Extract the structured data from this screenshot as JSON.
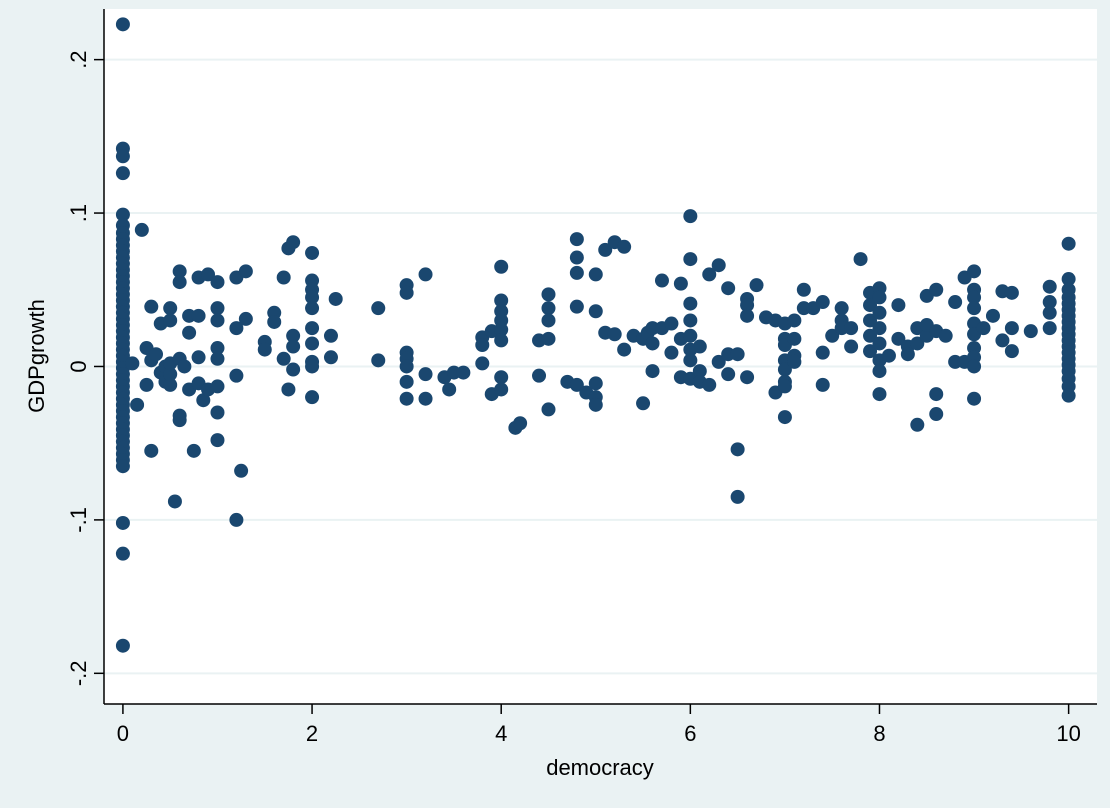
{
  "colors": {
    "outer_background": "#EAF2F3",
    "plot_background": "#FFFFFF",
    "gridline": "#EAF2F3",
    "marker": "#1A476F",
    "axis": "#000000"
  },
  "chart_data": {
    "type": "scatter",
    "xlabel": "democracy",
    "ylabel": "GDPgrowth",
    "xlim": [
      -0.2,
      10.3
    ],
    "ylim": [
      -0.22,
      0.233
    ],
    "xticks": [
      0,
      2,
      4,
      6,
      8,
      10
    ],
    "xtick_labels": [
      "0",
      "2",
      "4",
      "6",
      "8",
      "10"
    ],
    "yticks": [
      -0.2,
      -0.1,
      0,
      0.1,
      0.2
    ],
    "ytick_labels": [
      "-.2",
      "-.1",
      "0",
      ".1",
      ".2"
    ],
    "grid": "horizontal",
    "marker": "filled-circle",
    "points": [
      [
        0,
        0.223
      ],
      [
        0,
        0.142
      ],
      [
        0,
        0.137
      ],
      [
        0,
        0.126
      ],
      [
        0,
        0.099
      ],
      [
        0,
        0.092
      ],
      [
        0,
        0.087
      ],
      [
        0,
        0.083
      ],
      [
        0,
        0.079
      ],
      [
        0,
        0.075
      ],
      [
        0,
        0.071
      ],
      [
        0,
        0.067
      ],
      [
        0,
        0.063
      ],
      [
        0,
        0.059
      ],
      [
        0,
        0.055
      ],
      [
        0,
        0.051
      ],
      [
        0,
        0.047
      ],
      [
        0,
        0.043
      ],
      [
        0,
        0.039
      ],
      [
        0,
        0.035
      ],
      [
        0,
        0.031
      ],
      [
        0,
        0.027
      ],
      [
        0,
        0.023
      ],
      [
        0,
        0.019
      ],
      [
        0,
        0.015
      ],
      [
        0,
        0.011
      ],
      [
        0,
        0.007
      ],
      [
        0,
        0.003
      ],
      [
        0,
        -0.001
      ],
      [
        0,
        -0.005
      ],
      [
        0,
        -0.009
      ],
      [
        0,
        -0.013
      ],
      [
        0,
        -0.017
      ],
      [
        0,
        -0.021
      ],
      [
        0,
        -0.025
      ],
      [
        0,
        -0.029
      ],
      [
        0,
        -0.033
      ],
      [
        0,
        -0.037
      ],
      [
        0,
        -0.041
      ],
      [
        0,
        -0.045
      ],
      [
        0,
        -0.049
      ],
      [
        0,
        -0.053
      ],
      [
        0,
        -0.057
      ],
      [
        0,
        -0.061
      ],
      [
        0,
        -0.065
      ],
      [
        0,
        -0.102
      ],
      [
        0,
        -0.122
      ],
      [
        0,
        -0.182
      ],
      [
        0.1,
        0.002
      ],
      [
        0.15,
        -0.025
      ],
      [
        0.2,
        0.089
      ],
      [
        0.25,
        0.012
      ],
      [
        0.25,
        -0.012
      ],
      [
        0.3,
        0.039
      ],
      [
        0.3,
        0.004
      ],
      [
        0.3,
        -0.055
      ],
      [
        0.35,
        0.008
      ],
      [
        0.4,
        0.028
      ],
      [
        0.4,
        -0.004
      ],
      [
        0.45,
        -0.01
      ],
      [
        0.45,
        0.0
      ],
      [
        0.5,
        0.038
      ],
      [
        0.5,
        0.03
      ],
      [
        0.5,
        -0.012
      ],
      [
        0.5,
        -0.005
      ],
      [
        0.5,
        0.002
      ],
      [
        0.55,
        -0.088
      ],
      [
        0.6,
        0.062
      ],
      [
        0.6,
        0.055
      ],
      [
        0.6,
        0.005
      ],
      [
        0.6,
        -0.032
      ],
      [
        0.6,
        -0.035
      ],
      [
        0.65,
        0.0
      ],
      [
        0.7,
        0.033
      ],
      [
        0.7,
        0.022
      ],
      [
        0.7,
        -0.015
      ],
      [
        0.75,
        -0.055
      ],
      [
        0.8,
        0.058
      ],
      [
        0.8,
        0.033
      ],
      [
        0.8,
        0.006
      ],
      [
        0.8,
        -0.011
      ],
      [
        0.85,
        -0.022
      ],
      [
        0.9,
        0.06
      ],
      [
        0.9,
        -0.015
      ],
      [
        1.0,
        0.055
      ],
      [
        1.0,
        0.038
      ],
      [
        1.0,
        0.03
      ],
      [
        1.0,
        0.012
      ],
      [
        1.0,
        0.005
      ],
      [
        1.0,
        -0.013
      ],
      [
        1.0,
        -0.03
      ],
      [
        1.0,
        -0.048
      ],
      [
        1.2,
        0.058
      ],
      [
        1.2,
        0.025
      ],
      [
        1.2,
        -0.006
      ],
      [
        1.2,
        -0.1
      ],
      [
        1.25,
        -0.068
      ],
      [
        1.3,
        0.062
      ],
      [
        1.3,
        0.031
      ],
      [
        1.5,
        0.016
      ],
      [
        1.5,
        0.011
      ],
      [
        1.6,
        0.035
      ],
      [
        1.6,
        0.029
      ],
      [
        1.7,
        0.058
      ],
      [
        1.7,
        0.005
      ],
      [
        1.75,
        -0.015
      ],
      [
        1.75,
        0.077
      ],
      [
        1.8,
        0.081
      ],
      [
        1.8,
        0.02
      ],
      [
        1.8,
        0.013
      ],
      [
        1.8,
        -0.002
      ],
      [
        2.0,
        0.074
      ],
      [
        2.0,
        0.056
      ],
      [
        2.0,
        0.05
      ],
      [
        2.0,
        0.045
      ],
      [
        2.0,
        0.038
      ],
      [
        2.0,
        0.025
      ],
      [
        2.0,
        0.015
      ],
      [
        2.0,
        0.003
      ],
      [
        2.0,
        0.0
      ],
      [
        2.0,
        -0.02
      ],
      [
        2.2,
        0.02
      ],
      [
        2.2,
        0.006
      ],
      [
        2.25,
        0.044
      ],
      [
        2.7,
        0.038
      ],
      [
        2.7,
        0.004
      ],
      [
        3.0,
        0.053
      ],
      [
        3.0,
        0.048
      ],
      [
        3.0,
        0.009
      ],
      [
        3.0,
        0.005
      ],
      [
        3.0,
        0.0
      ],
      [
        3.0,
        -0.01
      ],
      [
        3.0,
        -0.021
      ],
      [
        3.2,
        0.06
      ],
      [
        3.2,
        -0.005
      ],
      [
        3.2,
        -0.021
      ],
      [
        3.4,
        -0.007
      ],
      [
        3.45,
        -0.015
      ],
      [
        3.5,
        -0.004
      ],
      [
        3.6,
        -0.004
      ],
      [
        3.8,
        0.019
      ],
      [
        3.8,
        0.014
      ],
      [
        3.8,
        0.002
      ],
      [
        3.9,
        0.023
      ],
      [
        3.9,
        -0.018
      ],
      [
        4.0,
        0.065
      ],
      [
        4.0,
        0.043
      ],
      [
        4.0,
        0.036
      ],
      [
        4.0,
        0.03
      ],
      [
        4.0,
        0.024
      ],
      [
        4.0,
        0.017
      ],
      [
        4.0,
        -0.007
      ],
      [
        4.0,
        -0.015
      ],
      [
        4.15,
        -0.04
      ],
      [
        4.2,
        -0.037
      ],
      [
        4.4,
        -0.006
      ],
      [
        4.4,
        0.017
      ],
      [
        4.5,
        0.047
      ],
      [
        4.5,
        0.038
      ],
      [
        4.5,
        0.03
      ],
      [
        4.5,
        0.018
      ],
      [
        4.5,
        -0.028
      ],
      [
        4.7,
        -0.01
      ],
      [
        4.8,
        -0.012
      ],
      [
        4.8,
        0.083
      ],
      [
        4.8,
        0.071
      ],
      [
        4.8,
        0.061
      ],
      [
        4.8,
        0.039
      ],
      [
        4.9,
        -0.017
      ],
      [
        5.0,
        0.06
      ],
      [
        5.0,
        0.036
      ],
      [
        5.0,
        -0.011
      ],
      [
        5.0,
        -0.02
      ],
      [
        5.0,
        -0.025
      ],
      [
        5.1,
        0.076
      ],
      [
        5.1,
        0.022
      ],
      [
        5.2,
        0.081
      ],
      [
        5.2,
        0.021
      ],
      [
        5.3,
        0.078
      ],
      [
        5.3,
        0.011
      ],
      [
        5.4,
        0.02
      ],
      [
        5.5,
        0.018
      ],
      [
        5.5,
        -0.024
      ],
      [
        5.55,
        0.022
      ],
      [
        5.6,
        0.025
      ],
      [
        5.6,
        0.015
      ],
      [
        5.6,
        -0.003
      ],
      [
        5.7,
        0.056
      ],
      [
        5.7,
        0.025
      ],
      [
        5.8,
        0.028
      ],
      [
        5.8,
        0.009
      ],
      [
        5.9,
        0.054
      ],
      [
        5.9,
        0.018
      ],
      [
        5.9,
        -0.007
      ],
      [
        6.0,
        0.098
      ],
      [
        6.0,
        0.07
      ],
      [
        6.0,
        0.041
      ],
      [
        6.0,
        0.03
      ],
      [
        6.0,
        0.02
      ],
      [
        6.0,
        0.011
      ],
      [
        6.0,
        0.004
      ],
      [
        6.0,
        -0.008
      ],
      [
        6.1,
        0.013
      ],
      [
        6.1,
        -0.003
      ],
      [
        6.1,
        -0.01
      ],
      [
        6.2,
        0.06
      ],
      [
        6.2,
        -0.012
      ],
      [
        6.3,
        0.066
      ],
      [
        6.3,
        0.003
      ],
      [
        6.4,
        0.051
      ],
      [
        6.4,
        0.008
      ],
      [
        6.4,
        -0.005
      ],
      [
        6.5,
        0.008
      ],
      [
        6.5,
        -0.054
      ],
      [
        6.5,
        -0.085
      ],
      [
        6.6,
        0.044
      ],
      [
        6.6,
        0.04
      ],
      [
        6.6,
        0.033
      ],
      [
        6.6,
        -0.007
      ],
      [
        6.7,
        0.053
      ],
      [
        6.8,
        0.032
      ],
      [
        6.9,
        0.03
      ],
      [
        6.9,
        -0.017
      ],
      [
        7.0,
        0.028
      ],
      [
        7.0,
        0.018
      ],
      [
        7.0,
        0.014
      ],
      [
        7.0,
        0.004
      ],
      [
        7.0,
        -0.002
      ],
      [
        7.0,
        -0.01
      ],
      [
        7.0,
        -0.013
      ],
      [
        7.0,
        -0.033
      ],
      [
        7.1,
        0.03
      ],
      [
        7.1,
        0.018
      ],
      [
        7.1,
        0.007
      ],
      [
        7.1,
        0.003
      ],
      [
        7.2,
        0.05
      ],
      [
        7.2,
        0.038
      ],
      [
        7.3,
        0.038
      ],
      [
        7.4,
        0.042
      ],
      [
        7.4,
        0.009
      ],
      [
        7.4,
        -0.012
      ],
      [
        7.5,
        0.02
      ],
      [
        7.6,
        0.038
      ],
      [
        7.6,
        0.03
      ],
      [
        7.6,
        0.025
      ],
      [
        7.7,
        0.013
      ],
      [
        7.7,
        0.025
      ],
      [
        7.8,
        0.07
      ],
      [
        7.9,
        0.048
      ],
      [
        7.9,
        0.04
      ],
      [
        7.9,
        0.03
      ],
      [
        7.9,
        0.02
      ],
      [
        7.9,
        0.01
      ],
      [
        8.0,
        0.051
      ],
      [
        8.0,
        0.045
      ],
      [
        8.0,
        0.035
      ],
      [
        8.0,
        0.025
      ],
      [
        8.0,
        0.015
      ],
      [
        8.0,
        0.004
      ],
      [
        8.0,
        -0.003
      ],
      [
        8.0,
        -0.018
      ],
      [
        8.1,
        0.007
      ],
      [
        8.2,
        0.04
      ],
      [
        8.2,
        0.018
      ],
      [
        8.3,
        0.013
      ],
      [
        8.3,
        0.008
      ],
      [
        8.4,
        0.025
      ],
      [
        8.4,
        0.015
      ],
      [
        8.4,
        -0.038
      ],
      [
        8.5,
        0.02
      ],
      [
        8.5,
        0.046
      ],
      [
        8.5,
        0.027
      ],
      [
        8.6,
        0.05
      ],
      [
        8.6,
        0.023
      ],
      [
        8.6,
        -0.018
      ],
      [
        8.6,
        -0.031
      ],
      [
        8.7,
        0.02
      ],
      [
        8.8,
        0.042
      ],
      [
        8.8,
        0.003
      ],
      [
        8.9,
        0.058
      ],
      [
        8.9,
        0.003
      ],
      [
        9.0,
        0.062
      ],
      [
        9.0,
        0.05
      ],
      [
        9.0,
        0.045
      ],
      [
        9.0,
        0.038
      ],
      [
        9.0,
        0.028
      ],
      [
        9.0,
        0.021
      ],
      [
        9.0,
        0.012
      ],
      [
        9.0,
        0.006
      ],
      [
        9.0,
        0.0
      ],
      [
        9.0,
        -0.021
      ],
      [
        9.1,
        0.025
      ],
      [
        9.2,
        0.033
      ],
      [
        9.3,
        0.049
      ],
      [
        9.3,
        0.017
      ],
      [
        9.4,
        0.048
      ],
      [
        9.4,
        0.025
      ],
      [
        9.4,
        0.01
      ],
      [
        9.6,
        0.023
      ],
      [
        9.8,
        0.052
      ],
      [
        9.8,
        0.042
      ],
      [
        9.8,
        0.035
      ],
      [
        9.8,
        0.025
      ],
      [
        10.0,
        0.08
      ],
      [
        10.0,
        0.057
      ],
      [
        10.0,
        0.05
      ],
      [
        10.0,
        0.045
      ],
      [
        10.0,
        0.041
      ],
      [
        10.0,
        0.037
      ],
      [
        10.0,
        0.033
      ],
      [
        10.0,
        0.029
      ],
      [
        10.0,
        0.025
      ],
      [
        10.0,
        0.021
      ],
      [
        10.0,
        0.017
      ],
      [
        10.0,
        0.013
      ],
      [
        10.0,
        0.009
      ],
      [
        10.0,
        0.005
      ],
      [
        10.0,
        0.001
      ],
      [
        10.0,
        -0.003
      ],
      [
        10.0,
        -0.008
      ],
      [
        10.0,
        -0.013
      ],
      [
        10.0,
        -0.019
      ]
    ]
  }
}
